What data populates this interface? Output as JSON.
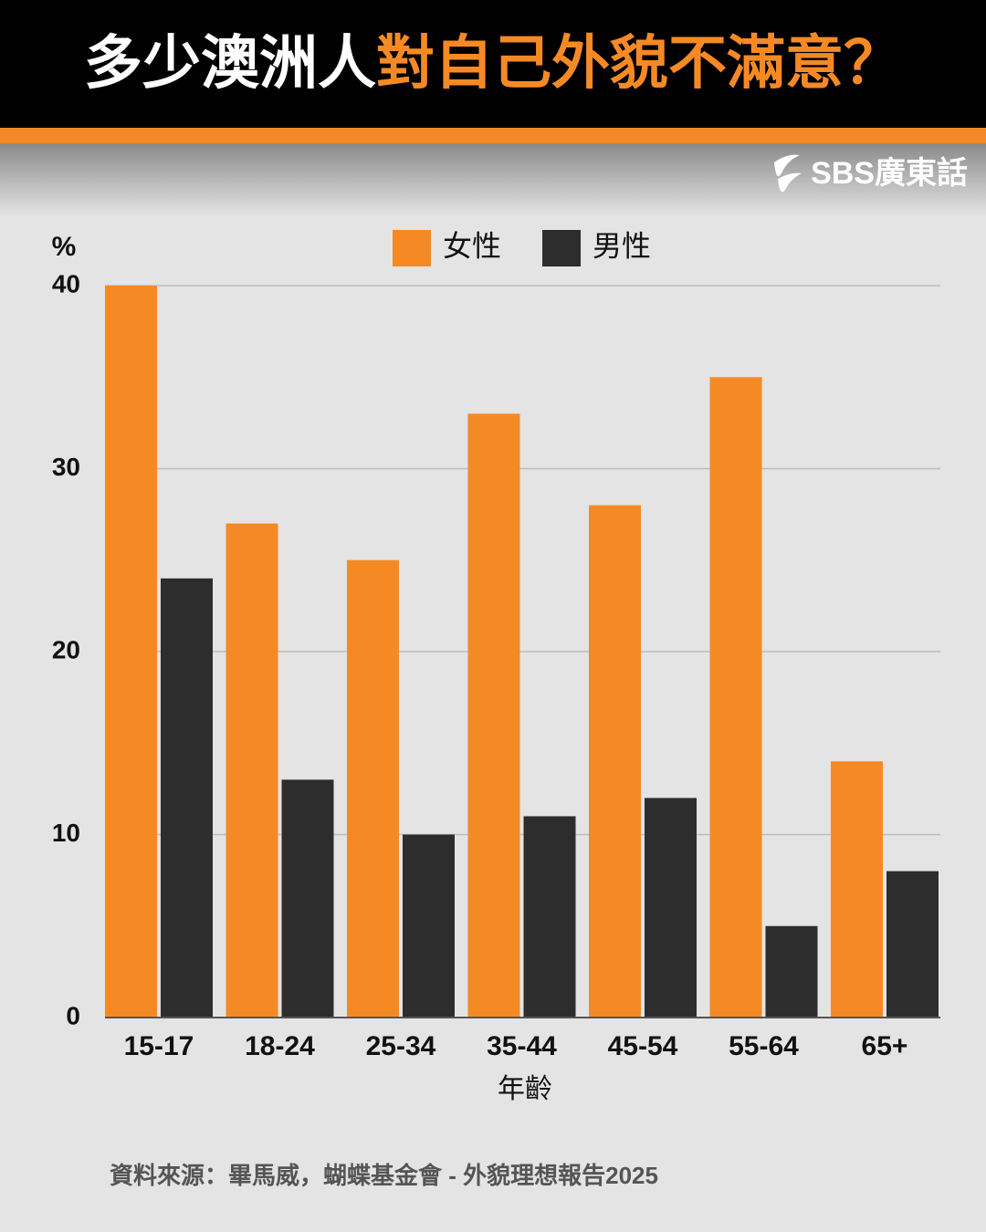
{
  "chart_data": {
    "type": "bar",
    "title_parts": [
      "多少澳洲人",
      "對自己外貌不滿意？"
    ],
    "brand": "SBS廣東話",
    "y_label": "%",
    "x_label": "年齡",
    "source": "資料來源：畢馬威，蝴蝶基金會 - 外貌理想報告2025",
    "categories": [
      "15-17",
      "18-24",
      "25-34",
      "35-44",
      "45-54",
      "55-64",
      "65+"
    ],
    "series": [
      {
        "name": "女性",
        "color": "#f58a25",
        "values": [
          40,
          27,
          25,
          33,
          28,
          35,
          14
        ]
      },
      {
        "name": "男性",
        "color": "#2d2d2d",
        "values": [
          24,
          13,
          10,
          11,
          12,
          5,
          8
        ]
      }
    ],
    "ylim": [
      0,
      40
    ],
    "yticks": [
      0,
      10,
      20,
      30,
      40
    ],
    "grid": true,
    "title_colors": [
      "#ffffff",
      "#f58a25"
    ]
  }
}
